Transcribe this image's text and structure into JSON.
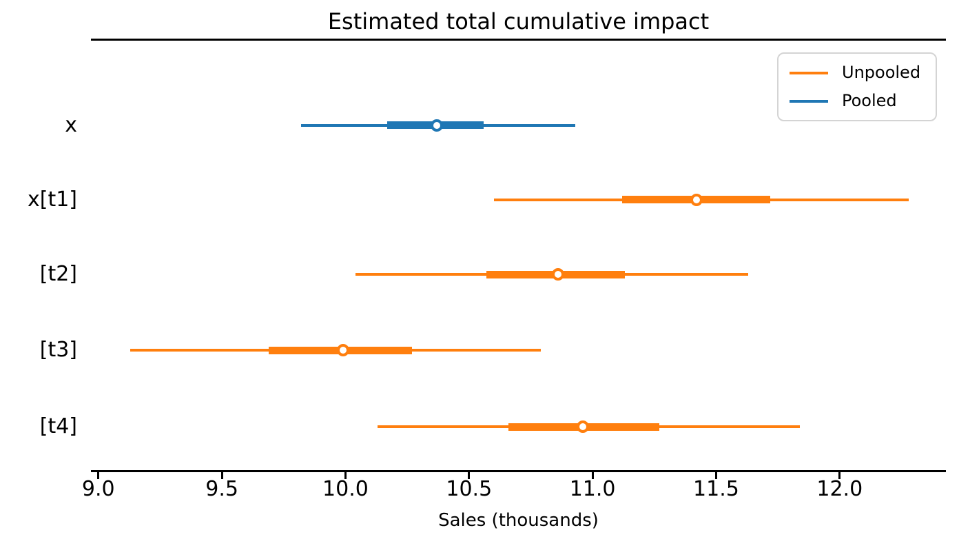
{
  "figure": {
    "title": "Estimated total cumulative impact",
    "xlabel": "Sales (thousands)"
  },
  "legend": {
    "items": [
      {
        "label": "Unpooled",
        "color": "#ff7f0e"
      },
      {
        "label": "Pooled",
        "color": "#1f77b4"
      }
    ]
  },
  "colors": {
    "unpooled_orange": "#ff7f0e",
    "pooled_blue": "#1f77b4",
    "axis_black": "#000000",
    "legend_border_gray": "#d4d4d4",
    "marker_fill_white": "#ffffff"
  },
  "chart_data": {
    "type": "forest",
    "title": "Estimated total cumulative impact",
    "xlabel": "Sales (thousands)",
    "ylabel": "",
    "xlim": [
      8.97,
      12.43
    ],
    "xticks": [
      9.0,
      9.5,
      10.0,
      10.5,
      11.0,
      11.5,
      12.0
    ],
    "xtick_labels": [
      "9.0",
      "9.5",
      "10.0",
      "10.5",
      "11.0",
      "11.5",
      "12.0"
    ],
    "grid": false,
    "legend_position": "upper right",
    "series_legend": [
      "Unpooled",
      "Pooled"
    ],
    "rows": [
      {
        "label": "x",
        "series": "Pooled",
        "color": "#1f77b4",
        "ci_outer": [
          9.82,
          10.93
        ],
        "ci_inner": [
          10.17,
          10.56
        ],
        "point": 10.37
      },
      {
        "label": "x[t1]",
        "series": "Unpooled",
        "color": "#ff7f0e",
        "ci_outer": [
          10.6,
          12.28
        ],
        "ci_inner": [
          11.12,
          11.72
        ],
        "point": 11.42
      },
      {
        "label": "[t2]",
        "series": "Unpooled",
        "color": "#ff7f0e",
        "ci_outer": [
          10.04,
          11.63
        ],
        "ci_inner": [
          10.57,
          11.13
        ],
        "point": 10.86
      },
      {
        "label": "[t3]",
        "series": "Unpooled",
        "color": "#ff7f0e",
        "ci_outer": [
          9.13,
          10.79
        ],
        "ci_inner": [
          9.69,
          10.27
        ],
        "point": 9.99
      },
      {
        "label": "[t4]",
        "series": "Unpooled",
        "color": "#ff7f0e",
        "ci_outer": [
          10.13,
          11.84
        ],
        "ci_inner": [
          10.66,
          11.27
        ],
        "point": 10.96
      }
    ]
  }
}
